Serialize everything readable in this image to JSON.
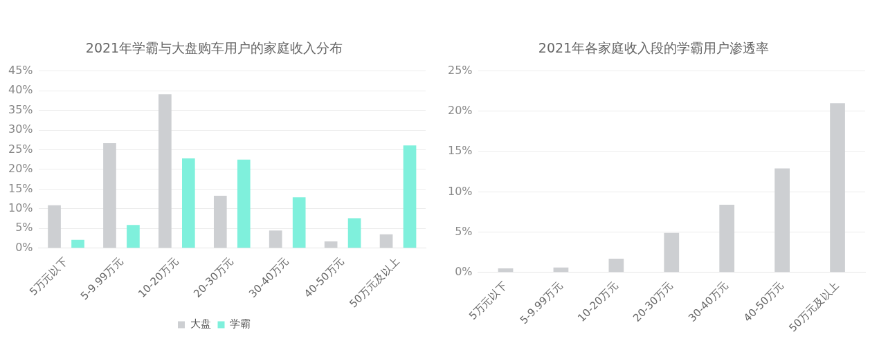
{
  "chart_data": [
    {
      "type": "bar",
      "title": "2021年学霸与大盘购车用户的家庭收入分布",
      "categories": [
        "5万元以下",
        "5-9.99万元",
        "10-20万元",
        "20-30万元",
        "30-40万元",
        "40-50万元",
        "50万元及以上"
      ],
      "series": [
        {
          "name": "大盘",
          "color": "#cdcfd2",
          "values": [
            10.9,
            26.7,
            39.1,
            13.3,
            4.5,
            1.7,
            3.5
          ]
        },
        {
          "name": "学霸",
          "color": "#7ff0dc",
          "values": [
            2.1,
            5.9,
            22.8,
            22.5,
            12.9,
            7.6,
            26.1
          ]
        }
      ],
      "ylim": [
        0,
        45
      ],
      "yticks": [
        {
          "value": 0,
          "label": "0%"
        },
        {
          "value": 5,
          "label": "5%"
        },
        {
          "value": 10,
          "label": "10%"
        },
        {
          "value": 15,
          "label": "15%"
        },
        {
          "value": 20,
          "label": "20%"
        },
        {
          "value": 25,
          "label": "25%"
        },
        {
          "value": 30,
          "label": "30%"
        },
        {
          "value": 35,
          "label": "35%"
        },
        {
          "value": 40,
          "label": "40%"
        },
        {
          "value": 45,
          "label": "45%"
        }
      ],
      "grid": "y",
      "legend": "bottom"
    },
    {
      "type": "bar",
      "title": "2021年各家庭收入段的学霸用户渗透率",
      "categories": [
        "5万元以下",
        "5-9.99万元",
        "10-20万元",
        "20-30万元",
        "30-40万元",
        "40-50万元",
        "50万元及以上"
      ],
      "values": [
        0.5,
        0.6,
        1.7,
        4.9,
        8.4,
        12.9,
        21.0
      ],
      "color": "#cdcfd2",
      "ylim": [
        0,
        25
      ],
      "yticks": [
        {
          "value": 0,
          "label": "0%"
        },
        {
          "value": 5,
          "label": "5%"
        },
        {
          "value": 10,
          "label": "10%"
        },
        {
          "value": 15,
          "label": "15%"
        },
        {
          "value": 20,
          "label": "20%"
        },
        {
          "value": 25,
          "label": "25%"
        }
      ],
      "grid": "y"
    }
  ]
}
